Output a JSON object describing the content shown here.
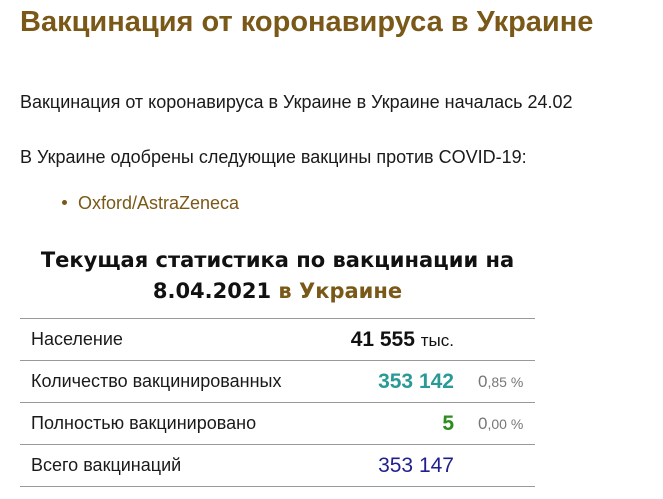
{
  "page_title": "Вакцинация от коронавируса в Украине",
  "intro": "Вакцинация от коронавируса в Украине в Украине началась 24.02",
  "approved_text": "В Украине одобрены следующие вакцины против COVID-19:",
  "vaccines": [
    "Oxford/AstraZeneca"
  ],
  "stats": {
    "title_prefix": "Текущая статистика по вакцинации на 8.04.2021",
    "title_highlight": "в Украине",
    "rows": [
      {
        "label": "Население",
        "value": "41 555",
        "unit": "тыс.",
        "percent": ""
      },
      {
        "label": "Количество вакцинированных",
        "value": "353 142",
        "percent_int": "0",
        "percent_frac": ",85 %"
      },
      {
        "label": "Полностью вакцинировано",
        "value": "5",
        "percent_int": "0",
        "percent_frac": ",00 %"
      },
      {
        "label": "Всего вакцинаций",
        "value": "353 147"
      }
    ]
  },
  "colors": {
    "accent": "#7a5818",
    "vaccinated": "#2a9a96",
    "fully": "#2e8b1e",
    "total": "#1f1f8f"
  }
}
